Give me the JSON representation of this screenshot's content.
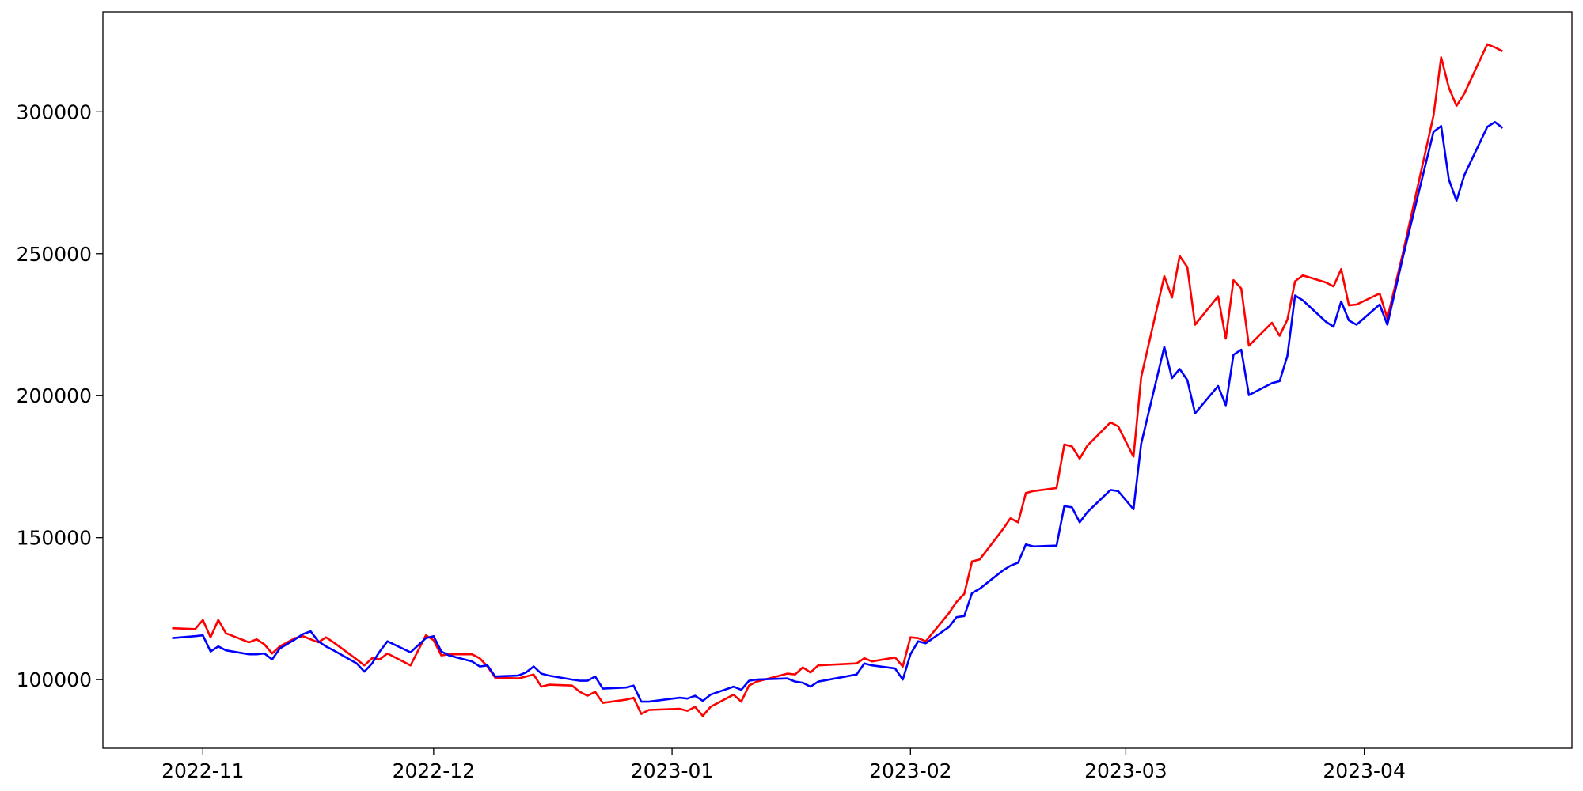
{
  "chart_data": {
    "type": "line",
    "x": [
      "2022-10-28",
      "2022-10-31",
      "2022-11-01",
      "2022-11-02",
      "2022-11-03",
      "2022-11-04",
      "2022-11-07",
      "2022-11-08",
      "2022-11-09",
      "2022-11-10",
      "2022-11-11",
      "2022-11-13",
      "2022-11-14",
      "2022-11-15",
      "2022-11-16",
      "2022-11-17",
      "2022-11-18",
      "2022-11-21",
      "2022-11-22",
      "2022-11-23",
      "2022-11-24",
      "2022-11-25",
      "2022-11-28",
      "2022-11-30",
      "2022-12-01",
      "2022-12-02",
      "2022-12-03",
      "2022-12-06",
      "2022-12-07",
      "2022-12-08",
      "2022-12-09",
      "2022-12-12",
      "2022-12-13",
      "2022-12-14",
      "2022-12-15",
      "2022-12-16",
      "2022-12-19",
      "2022-12-20",
      "2022-12-21",
      "2022-12-22",
      "2022-12-23",
      "2022-12-26",
      "2022-12-27",
      "2022-12-28",
      "2022-12-29",
      "2023-01-02",
      "2023-01-03",
      "2023-01-04",
      "2023-01-05",
      "2023-01-06",
      "2023-01-09",
      "2023-01-10",
      "2023-01-11",
      "2023-01-12",
      "2023-01-16",
      "2023-01-17",
      "2023-01-18",
      "2023-01-19",
      "2023-01-20",
      "2023-01-25",
      "2023-01-26",
      "2023-01-27",
      "2023-01-30",
      "2023-01-31",
      "2023-02-01",
      "2023-02-02",
      "2023-02-03",
      "2023-02-06",
      "2023-02-07",
      "2023-02-08",
      "2023-02-09",
      "2023-02-10",
      "2023-02-13",
      "2023-02-14",
      "2023-02-15",
      "2023-02-16",
      "2023-02-17",
      "2023-02-20",
      "2023-02-21",
      "2023-02-22",
      "2023-02-23",
      "2023-02-24",
      "2023-02-27",
      "2023-02-28",
      "2023-03-02",
      "2023-03-03",
      "2023-03-06",
      "2023-03-07",
      "2023-03-08",
      "2023-03-09",
      "2023-03-10",
      "2023-03-13",
      "2023-03-14",
      "2023-03-15",
      "2023-03-16",
      "2023-03-17",
      "2023-03-20",
      "2023-03-21",
      "2023-03-22",
      "2023-03-23",
      "2023-03-24",
      "2023-03-27",
      "2023-03-28",
      "2023-03-29",
      "2023-03-30",
      "2023-03-31",
      "2023-04-03",
      "2023-04-04",
      "2023-04-06",
      "2023-04-10",
      "2023-04-11",
      "2023-04-12",
      "2023-04-13",
      "2023-04-14",
      "2023-04-17",
      "2023-04-18",
      "2023-04-19"
    ],
    "series": [
      {
        "color": "red",
        "values": [
          118100,
          117800,
          121000,
          114900,
          121000,
          116300,
          113100,
          114200,
          112400,
          109200,
          111700,
          114600,
          115300,
          114200,
          113100,
          114900,
          113100,
          107100,
          105000,
          107500,
          107100,
          109200,
          105000,
          115600,
          113900,
          108500,
          108900,
          108900,
          107500,
          104600,
          100700,
          100400,
          101100,
          101800,
          97500,
          98200,
          97900,
          95700,
          94300,
          95700,
          91800,
          92900,
          93600,
          87900,
          89300,
          89700,
          89000,
          90400,
          87200,
          90400,
          94700,
          92200,
          97900,
          99300,
          102100,
          101800,
          104300,
          102500,
          105000,
          105700,
          107500,
          106400,
          107800,
          104600,
          114900,
          114600,
          113500,
          123400,
          127400,
          130200,
          141600,
          142300,
          152900,
          156800,
          155400,
          165700,
          166400,
          167500,
          182800,
          182100,
          177800,
          182400,
          190600,
          189200,
          178500,
          206600,
          242100,
          234600,
          249200,
          245300,
          225000,
          235000,
          220100,
          240700,
          237800,
          217600,
          225700,
          221100,
          226800,
          240300,
          242400,
          239900,
          238500,
          244600,
          231800,
          232100,
          236000,
          227200,
          249900,
          298600,
          319200,
          308500,
          302100,
          306400,
          323800,
          322700,
          321300
        ]
      },
      {
        "color": "blue",
        "values": [
          114600,
          115300,
          115600,
          109900,
          111700,
          110300,
          108900,
          108900,
          109200,
          107100,
          111000,
          114200,
          116000,
          117000,
          113500,
          111700,
          110300,
          105700,
          102800,
          105700,
          109900,
          113500,
          109600,
          114600,
          115300,
          109900,
          108500,
          106400,
          104600,
          105000,
          101100,
          101400,
          102500,
          104600,
          102100,
          101400,
          100000,
          99600,
          99600,
          101100,
          96800,
          97200,
          97900,
          92200,
          92200,
          93600,
          93300,
          94300,
          92500,
          94700,
          97500,
          96400,
          99600,
          100000,
          100400,
          99300,
          98900,
          97500,
          99300,
          101800,
          105700,
          105000,
          103900,
          100000,
          108900,
          113500,
          112800,
          118500,
          122000,
          122400,
          130500,
          132000,
          138400,
          140100,
          141200,
          147600,
          146900,
          147200,
          161100,
          160700,
          155400,
          159000,
          166800,
          166400,
          160000,
          183100,
          217200,
          206200,
          209400,
          205500,
          193800,
          203400,
          196600,
          214400,
          216200,
          200200,
          204400,
          205100,
          214000,
          235300,
          233600,
          226100,
          224300,
          233200,
          226500,
          225000,
          232100,
          225000,
          248500,
          292900,
          295000,
          276200,
          268700,
          277600,
          294700,
          296400,
          294300
        ]
      }
    ],
    "xlim": [
      "2022-10-19",
      "2023-04-28"
    ],
    "xticks": [
      {
        "value": "2022-11-01",
        "label": "2022-11"
      },
      {
        "value": "2022-12-01",
        "label": "2022-12"
      },
      {
        "value": "2023-01-01",
        "label": "2023-01"
      },
      {
        "value": "2023-02-01",
        "label": "2023-02"
      },
      {
        "value": "2023-03-01",
        "label": "2023-03"
      },
      {
        "value": "2023-04-01",
        "label": "2023-04"
      }
    ],
    "ylim": [
      75800,
      335200
    ],
    "yticks": [
      100000,
      150000,
      200000,
      250000,
      300000
    ]
  }
}
